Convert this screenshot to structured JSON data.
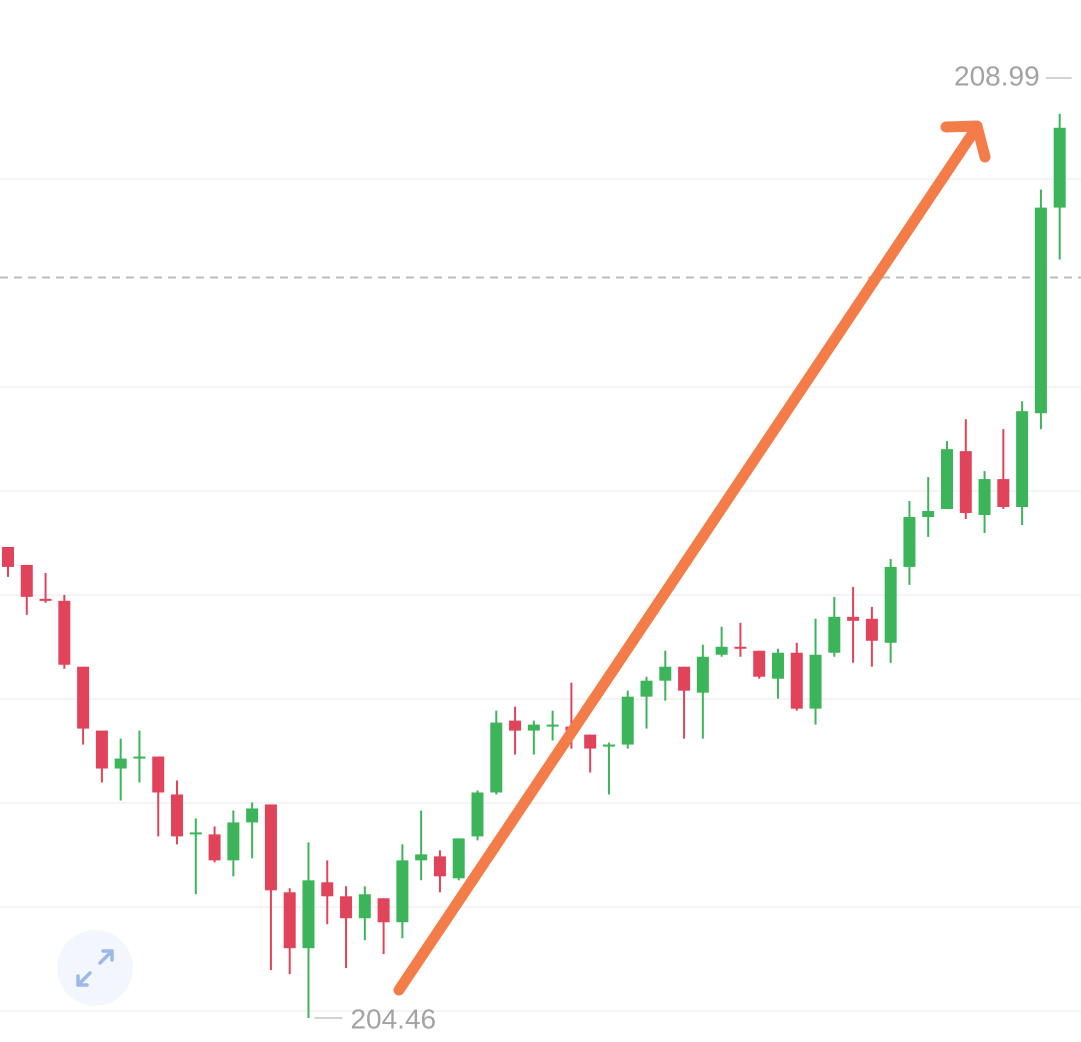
{
  "chart_data": {
    "type": "candlestick",
    "up_color": "#3cb55a",
    "down_color": "#e0435a",
    "ylim": [
      204.34,
      209.56
    ],
    "reference_line": 208.17,
    "open": [
      206.82,
      206.73,
      206.56,
      206.55,
      206.22,
      205.9,
      205.71,
      205.76,
      205.77,
      205.58,
      205.38,
      205.38,
      205.25,
      205.44,
      205.53,
      205.09,
      204.81,
      205.14,
      205.07,
      204.96,
      205.06,
      204.94,
      205.25,
      205.27,
      205.16,
      205.37,
      205.59,
      205.95,
      205.9,
      205.92,
      205.92,
      205.88,
      205.82,
      205.83,
      206.07,
      206.15,
      206.22,
      206.09,
      206.28,
      206.32,
      206.3,
      206.16,
      206.29,
      206.01,
      206.29,
      206.47,
      206.46,
      206.34,
      206.72,
      206.97,
      207.01,
      207.3,
      206.98,
      207.16,
      207.02,
      207.49,
      208.52
    ],
    "high": [
      206.82,
      206.73,
      206.69,
      206.58,
      206.22,
      205.9,
      205.86,
      205.9,
      205.77,
      205.65,
      205.46,
      205.42,
      205.5,
      205.54,
      205.53,
      205.11,
      205.34,
      205.25,
      205.12,
      205.12,
      205.06,
      205.33,
      205.5,
      205.3,
      205.36,
      205.6,
      206.0,
      206.02,
      205.95,
      206.0,
      206.14,
      205.88,
      205.84,
      206.1,
      206.17,
      206.3,
      206.22,
      206.33,
      206.42,
      206.44,
      206.3,
      206.31,
      206.34,
      206.46,
      206.57,
      206.62,
      206.52,
      206.76,
      207.05,
      207.17,
      207.35,
      207.46,
      207.2,
      207.41,
      207.55,
      208.61,
      208.99
    ],
    "low": [
      206.67,
      206.48,
      206.54,
      206.21,
      205.83,
      205.64,
      205.55,
      205.64,
      205.37,
      205.33,
      205.08,
      205.24,
      205.17,
      205.26,
      204.7,
      204.68,
      204.46,
      204.93,
      204.71,
      204.85,
      204.78,
      204.86,
      205.15,
      205.09,
      205.15,
      205.35,
      205.58,
      205.78,
      205.78,
      205.85,
      205.81,
      205.69,
      205.58,
      205.81,
      205.91,
      206.05,
      205.86,
      205.86,
      206.27,
      206.27,
      206.16,
      206.06,
      206.0,
      205.93,
      206.27,
      206.24,
      206.22,
      206.24,
      206.63,
      206.87,
      207.01,
      206.96,
      206.89,
      207.01,
      206.93,
      207.41,
      208.26
    ],
    "close": [
      206.72,
      206.57,
      206.55,
      206.23,
      205.91,
      205.71,
      205.76,
      205.77,
      205.59,
      205.37,
      205.39,
      205.25,
      205.44,
      205.51,
      205.1,
      204.81,
      205.15,
      205.07,
      204.96,
      205.08,
      204.94,
      205.25,
      205.28,
      205.17,
      205.36,
      205.59,
      205.94,
      205.9,
      205.93,
      205.93,
      205.9,
      205.81,
      205.83,
      206.07,
      206.15,
      206.22,
      206.1,
      206.27,
      206.32,
      206.31,
      206.17,
      206.29,
      206.01,
      206.28,
      206.47,
      206.45,
      206.35,
      206.72,
      206.97,
      207.0,
      207.31,
      206.99,
      207.16,
      207.02,
      207.5,
      208.52,
      208.92
    ]
  }
}
